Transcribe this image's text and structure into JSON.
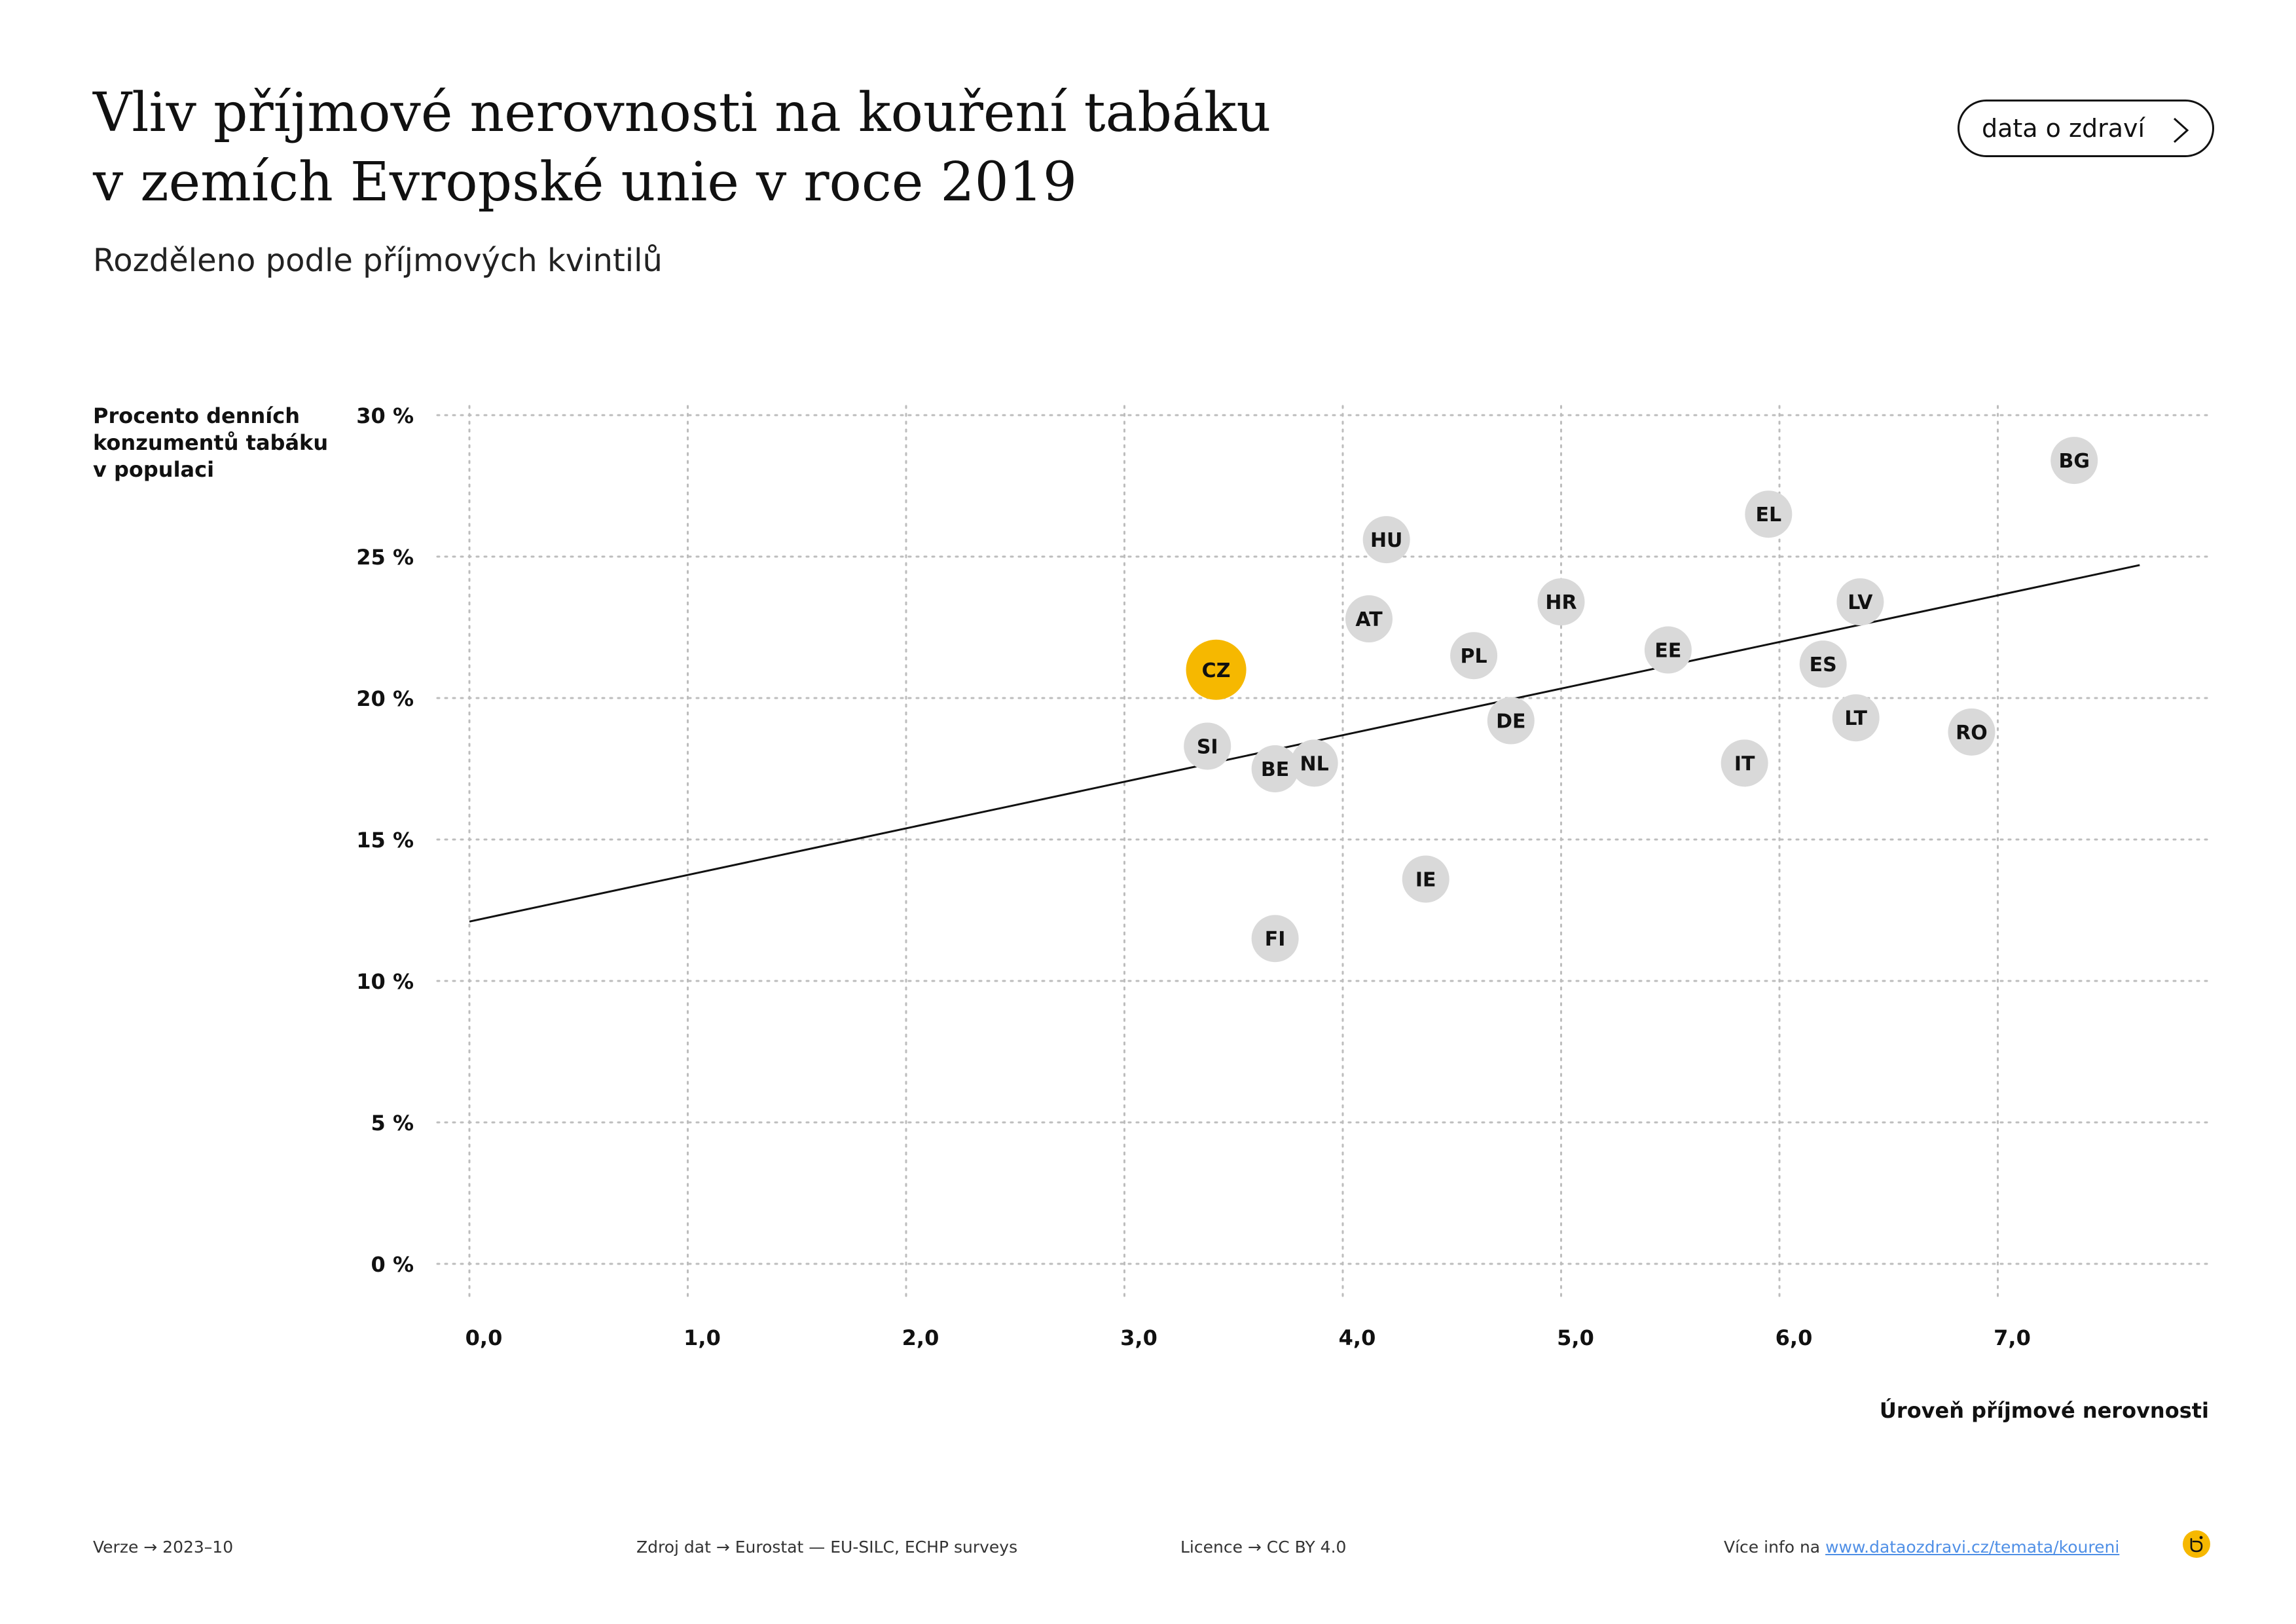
{
  "header": {
    "title_line1": "Vliv příjmové nerovnosti na kouření tabáku",
    "title_line2": "v zemích Evropské unie v roce 2019",
    "subtitle": "Rozděleno podle příjmových kvintilů",
    "nav_button_label": "data o zdraví"
  },
  "colors": {
    "highlight": "#f6b800",
    "point": "#d9d9d9",
    "grid": "#bdbdbd",
    "trend": "#111111",
    "link": "#4f8fe6"
  },
  "chart_data": {
    "type": "scatter",
    "ylabel_lines": [
      "Procento denních",
      "konzumentů tabáku",
      "v populaci"
    ],
    "xlabel": "Úroveň příjmové nerovnosti",
    "xlim": [
      0,
      8
    ],
    "ylim": [
      0,
      30
    ],
    "x_ticks": [
      0,
      1,
      2,
      3,
      4,
      5,
      6,
      7
    ],
    "x_tick_labels": [
      "0,0",
      "1,0",
      "2,0",
      "3,0",
      "4,0",
      "5,0",
      "6,0",
      "7,0"
    ],
    "y_ticks": [
      0,
      5,
      10,
      15,
      20,
      25,
      30
    ],
    "y_tick_labels": [
      "0 %",
      "5 %",
      "10 %",
      "15 %",
      "20 %",
      "25 %",
      "30 %"
    ],
    "grid": true,
    "highlight": "CZ",
    "points": [
      {
        "label": "BG",
        "x": 7.35,
        "y": 28.4
      },
      {
        "label": "EL",
        "x": 5.95,
        "y": 26.5
      },
      {
        "label": "HU",
        "x": 4.2,
        "y": 25.6
      },
      {
        "label": "LV",
        "x": 6.37,
        "y": 23.4
      },
      {
        "label": "HR",
        "x": 5.0,
        "y": 23.4
      },
      {
        "label": "AT",
        "x": 4.12,
        "y": 22.8
      },
      {
        "label": "EE",
        "x": 5.49,
        "y": 21.7
      },
      {
        "label": "PL",
        "x": 4.6,
        "y": 21.5
      },
      {
        "label": "ES",
        "x": 6.2,
        "y": 21.2
      },
      {
        "label": "CZ",
        "x": 3.42,
        "y": 21.0
      },
      {
        "label": "LT",
        "x": 6.35,
        "y": 19.3
      },
      {
        "label": "DE",
        "x": 4.77,
        "y": 19.2
      },
      {
        "label": "RO",
        "x": 6.88,
        "y": 18.8
      },
      {
        "label": "SI",
        "x": 3.38,
        "y": 18.3
      },
      {
        "label": "NL",
        "x": 3.87,
        "y": 17.7
      },
      {
        "label": "IT",
        "x": 5.84,
        "y": 17.7
      },
      {
        "label": "BE",
        "x": 3.69,
        "y": 17.5
      },
      {
        "label": "IE",
        "x": 4.38,
        "y": 13.6
      },
      {
        "label": "FI",
        "x": 3.69,
        "y": 11.5
      }
    ],
    "trendline": {
      "x": [
        0,
        7.65
      ],
      "y": [
        12.1,
        24.7
      ]
    }
  },
  "footer": {
    "version": "Verze  →  2023–10",
    "source": "Zdroj dat  →  Eurostat — EU-SILC, ECHP surveys",
    "license": "Licence  →  CC BY 4.0",
    "more_prefix": "Více info na ",
    "more_link": "www.dataozdravi.cz/temata/koureni"
  },
  "logo_icon": "dataozdravi-logo-icon",
  "nav_icon": "chevron-right-icon"
}
